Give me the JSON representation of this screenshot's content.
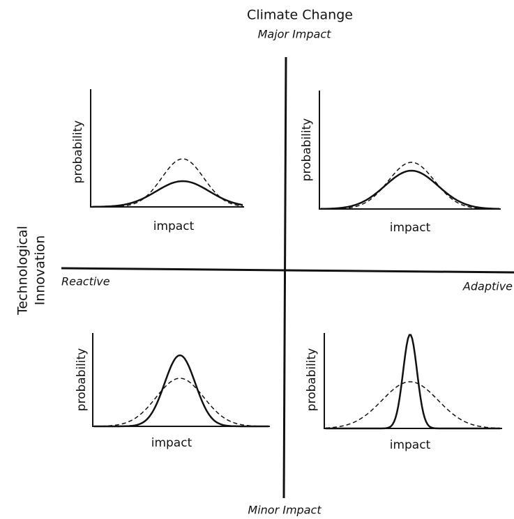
{
  "title": "Climate Change",
  "axes": {
    "top": "Major Impact",
    "bottom": "Minor Impact",
    "left": "Reactive",
    "right": "Adaptive",
    "side": [
      "Technological",
      "Innovation"
    ]
  },
  "panels": [
    {
      "y_label": "probability",
      "x_label": "impact"
    },
    {
      "y_label": "probability",
      "x_label": "impact"
    },
    {
      "y_label": "probability",
      "x_label": "impact"
    },
    {
      "y_label": "probability",
      "x_label": "impact"
    }
  ]
}
